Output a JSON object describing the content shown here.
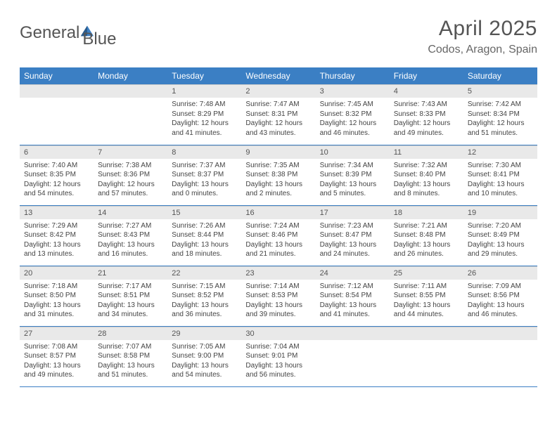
{
  "logo": {
    "text1": "General",
    "text2": "Blue"
  },
  "title": {
    "month": "April 2025",
    "location": "Codos, Aragon, Spain"
  },
  "colors": {
    "headerBg": "#3b7fc4",
    "dayNumBg": "#e9e9e9",
    "text": "#555",
    "rowDivider": "#3b7fc4"
  },
  "typography": {
    "titleSize": 30,
    "locationSize": 16,
    "headerSize": 12,
    "dayNumSize": 11,
    "contentSize": 10
  },
  "layout": {
    "columns": 7,
    "rows": 5,
    "cellHeight": 86
  },
  "weekdays": [
    "Sunday",
    "Monday",
    "Tuesday",
    "Wednesday",
    "Thursday",
    "Friday",
    "Saturday"
  ],
  "weeks": [
    [
      {
        "num": "",
        "lines": []
      },
      {
        "num": "",
        "lines": []
      },
      {
        "num": "1",
        "lines": [
          "Sunrise: 7:48 AM",
          "Sunset: 8:29 PM",
          "Daylight: 12 hours",
          "and 41 minutes."
        ]
      },
      {
        "num": "2",
        "lines": [
          "Sunrise: 7:47 AM",
          "Sunset: 8:31 PM",
          "Daylight: 12 hours",
          "and 43 minutes."
        ]
      },
      {
        "num": "3",
        "lines": [
          "Sunrise: 7:45 AM",
          "Sunset: 8:32 PM",
          "Daylight: 12 hours",
          "and 46 minutes."
        ]
      },
      {
        "num": "4",
        "lines": [
          "Sunrise: 7:43 AM",
          "Sunset: 8:33 PM",
          "Daylight: 12 hours",
          "and 49 minutes."
        ]
      },
      {
        "num": "5",
        "lines": [
          "Sunrise: 7:42 AM",
          "Sunset: 8:34 PM",
          "Daylight: 12 hours",
          "and 51 minutes."
        ]
      }
    ],
    [
      {
        "num": "6",
        "lines": [
          "Sunrise: 7:40 AM",
          "Sunset: 8:35 PM",
          "Daylight: 12 hours",
          "and 54 minutes."
        ]
      },
      {
        "num": "7",
        "lines": [
          "Sunrise: 7:38 AM",
          "Sunset: 8:36 PM",
          "Daylight: 12 hours",
          "and 57 minutes."
        ]
      },
      {
        "num": "8",
        "lines": [
          "Sunrise: 7:37 AM",
          "Sunset: 8:37 PM",
          "Daylight: 13 hours",
          "and 0 minutes."
        ]
      },
      {
        "num": "9",
        "lines": [
          "Sunrise: 7:35 AM",
          "Sunset: 8:38 PM",
          "Daylight: 13 hours",
          "and 2 minutes."
        ]
      },
      {
        "num": "10",
        "lines": [
          "Sunrise: 7:34 AM",
          "Sunset: 8:39 PM",
          "Daylight: 13 hours",
          "and 5 minutes."
        ]
      },
      {
        "num": "11",
        "lines": [
          "Sunrise: 7:32 AM",
          "Sunset: 8:40 PM",
          "Daylight: 13 hours",
          "and 8 minutes."
        ]
      },
      {
        "num": "12",
        "lines": [
          "Sunrise: 7:30 AM",
          "Sunset: 8:41 PM",
          "Daylight: 13 hours",
          "and 10 minutes."
        ]
      }
    ],
    [
      {
        "num": "13",
        "lines": [
          "Sunrise: 7:29 AM",
          "Sunset: 8:42 PM",
          "Daylight: 13 hours",
          "and 13 minutes."
        ]
      },
      {
        "num": "14",
        "lines": [
          "Sunrise: 7:27 AM",
          "Sunset: 8:43 PM",
          "Daylight: 13 hours",
          "and 16 minutes."
        ]
      },
      {
        "num": "15",
        "lines": [
          "Sunrise: 7:26 AM",
          "Sunset: 8:44 PM",
          "Daylight: 13 hours",
          "and 18 minutes."
        ]
      },
      {
        "num": "16",
        "lines": [
          "Sunrise: 7:24 AM",
          "Sunset: 8:46 PM",
          "Daylight: 13 hours",
          "and 21 minutes."
        ]
      },
      {
        "num": "17",
        "lines": [
          "Sunrise: 7:23 AM",
          "Sunset: 8:47 PM",
          "Daylight: 13 hours",
          "and 24 minutes."
        ]
      },
      {
        "num": "18",
        "lines": [
          "Sunrise: 7:21 AM",
          "Sunset: 8:48 PM",
          "Daylight: 13 hours",
          "and 26 minutes."
        ]
      },
      {
        "num": "19",
        "lines": [
          "Sunrise: 7:20 AM",
          "Sunset: 8:49 PM",
          "Daylight: 13 hours",
          "and 29 minutes."
        ]
      }
    ],
    [
      {
        "num": "20",
        "lines": [
          "Sunrise: 7:18 AM",
          "Sunset: 8:50 PM",
          "Daylight: 13 hours",
          "and 31 minutes."
        ]
      },
      {
        "num": "21",
        "lines": [
          "Sunrise: 7:17 AM",
          "Sunset: 8:51 PM",
          "Daylight: 13 hours",
          "and 34 minutes."
        ]
      },
      {
        "num": "22",
        "lines": [
          "Sunrise: 7:15 AM",
          "Sunset: 8:52 PM",
          "Daylight: 13 hours",
          "and 36 minutes."
        ]
      },
      {
        "num": "23",
        "lines": [
          "Sunrise: 7:14 AM",
          "Sunset: 8:53 PM",
          "Daylight: 13 hours",
          "and 39 minutes."
        ]
      },
      {
        "num": "24",
        "lines": [
          "Sunrise: 7:12 AM",
          "Sunset: 8:54 PM",
          "Daylight: 13 hours",
          "and 41 minutes."
        ]
      },
      {
        "num": "25",
        "lines": [
          "Sunrise: 7:11 AM",
          "Sunset: 8:55 PM",
          "Daylight: 13 hours",
          "and 44 minutes."
        ]
      },
      {
        "num": "26",
        "lines": [
          "Sunrise: 7:09 AM",
          "Sunset: 8:56 PM",
          "Daylight: 13 hours",
          "and 46 minutes."
        ]
      }
    ],
    [
      {
        "num": "27",
        "lines": [
          "Sunrise: 7:08 AM",
          "Sunset: 8:57 PM",
          "Daylight: 13 hours",
          "and 49 minutes."
        ]
      },
      {
        "num": "28",
        "lines": [
          "Sunrise: 7:07 AM",
          "Sunset: 8:58 PM",
          "Daylight: 13 hours",
          "and 51 minutes."
        ]
      },
      {
        "num": "29",
        "lines": [
          "Sunrise: 7:05 AM",
          "Sunset: 9:00 PM",
          "Daylight: 13 hours",
          "and 54 minutes."
        ]
      },
      {
        "num": "30",
        "lines": [
          "Sunrise: 7:04 AM",
          "Sunset: 9:01 PM",
          "Daylight: 13 hours",
          "and 56 minutes."
        ]
      },
      {
        "num": "",
        "lines": []
      },
      {
        "num": "",
        "lines": []
      },
      {
        "num": "",
        "lines": []
      }
    ]
  ]
}
